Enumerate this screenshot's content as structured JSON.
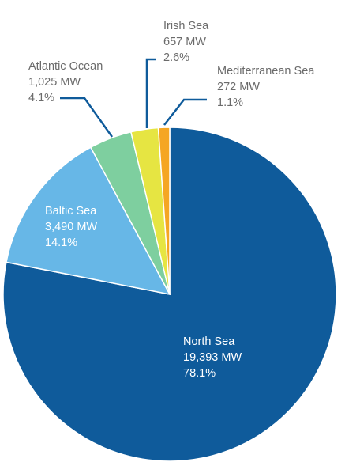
{
  "chart_data": {
    "type": "pie",
    "title": "",
    "start_angle_deg": 0,
    "direction": "clockwise",
    "slices": [
      {
        "label": "North Sea",
        "value_text": "19,393 MW",
        "value": 19393,
        "percent_text": "78.1%",
        "percent": 78.1,
        "color": "#0f5b9b"
      },
      {
        "label": "Baltic Sea",
        "value_text": "3,490 MW",
        "value": 3490,
        "percent_text": "14.1%",
        "percent": 14.1,
        "color": "#67b7e7"
      },
      {
        "label": "Atlantic Ocean",
        "value_text": "1,025 MW",
        "value": 1025,
        "percent_text": "4.1%",
        "percent": 4.1,
        "color": "#7ecf9f"
      },
      {
        "label": "Irish Sea",
        "value_text": "657 MW",
        "value": 657,
        "percent_text": "2.6%",
        "percent": 2.6,
        "color": "#e6e542"
      },
      {
        "label": "Mediterranean Sea",
        "value_text": "272 MW",
        "value": 272,
        "percent_text": "1.1%",
        "percent": 1.1,
        "color": "#f5a623"
      }
    ]
  }
}
